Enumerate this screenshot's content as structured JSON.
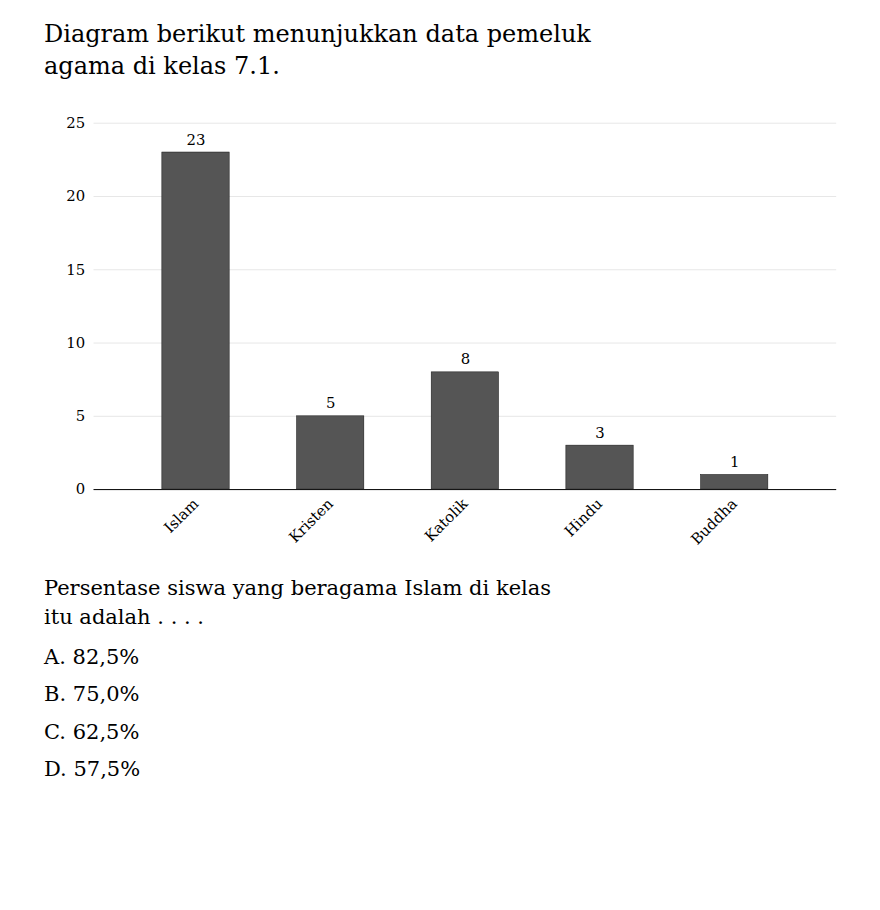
{
  "chart_data": {
    "type": "bar",
    "title": "Diagram berikut menunjukkan data pemeluk agama di kelas 7.1.",
    "categories": [
      "Islam",
      "Kristen",
      "Katolik",
      "Hindu",
      "Buddha"
    ],
    "values": [
      23,
      5,
      8,
      3,
      1
    ],
    "color": "#555555",
    "ylim": [
      0,
      25
    ],
    "yticks": [
      0,
      5,
      10,
      15,
      20,
      25
    ],
    "grid": true,
    "data_labels": true,
    "annotations": [
      "Persentase siswa yang beragama Islam di kelas itu adalah . . . .",
      "A. 82,5%",
      "B. 75,0%",
      "C. 62,5%",
      "D. 57,5%"
    ]
  }
}
